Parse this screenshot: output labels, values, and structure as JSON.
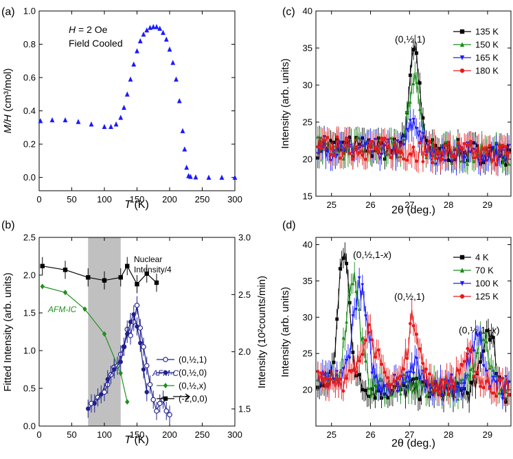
{
  "chart_data": [
    {
      "panel": "(a)",
      "type": "scatter",
      "xlabel_italic": "T",
      "xlabel_unit": " (K)",
      "ylabel_italic": "M/H",
      "ylabel_unit": " (cm³/mol)",
      "annotations": [
        "H = 2 Oe",
        "Field Cooled"
      ],
      "xlim": [
        0,
        300
      ],
      "ylim": [
        -0.08,
        1.0
      ],
      "xticks": [
        0,
        50,
        100,
        150,
        200,
        250,
        300
      ],
      "yticks": [
        0.0,
        0.2,
        0.4,
        0.6,
        0.8,
        1.0
      ],
      "xtick_labels": [
        "0",
        "50",
        "100",
        "150",
        "200",
        "250",
        "300"
      ],
      "ytick_labels": [
        "0.0",
        "0.2",
        "0.4",
        "0.6",
        "0.8",
        "1.0"
      ],
      "series": [
        {
          "color": "#1a1aff",
          "marker": "triangle",
          "x": [
            2,
            20,
            40,
            60,
            80,
            100,
            110,
            118,
            125,
            130,
            135,
            140,
            145,
            150,
            155,
            160,
            165,
            170,
            175,
            180,
            185,
            190,
            195,
            200,
            205,
            210,
            215,
            220,
            223,
            226,
            229,
            232,
            240,
            260,
            280,
            300
          ],
          "y": [
            0.34,
            0.345,
            0.345,
            0.335,
            0.32,
            0.305,
            0.305,
            0.32,
            0.36,
            0.42,
            0.5,
            0.59,
            0.68,
            0.76,
            0.82,
            0.86,
            0.885,
            0.9,
            0.905,
            0.905,
            0.895,
            0.87,
            0.83,
            0.77,
            0.69,
            0.59,
            0.46,
            0.28,
            0.17,
            0.06,
            0.01,
            0.005,
            0.002,
            0.0,
            0.0,
            0.0
          ]
        }
      ]
    },
    {
      "panel": "(b)",
      "type": "line",
      "xlabel_italic": "T",
      "xlabel_unit": " (K)",
      "ylabel": "Fitted Intensity (arb. units)",
      "ylabel_right": "Intensity (10²counts/min)",
      "xlim": [
        0,
        300
      ],
      "ylim": [
        0,
        2.5
      ],
      "ylim_right": [
        1.35,
        3.0
      ],
      "xticks": [
        0,
        50,
        100,
        150,
        200,
        250,
        300
      ],
      "yticks": [
        0.0,
        0.5,
        1.0,
        1.5,
        2.0,
        2.5
      ],
      "yticks_right": [
        1.5,
        2.0,
        2.5,
        3.0
      ],
      "xtick_labels": [
        "0",
        "50",
        "100",
        "150",
        "200",
        "250",
        "300"
      ],
      "ytick_labels": [
        "0.0",
        "0.5",
        "1.0",
        "1.5",
        "2.0",
        "2.5"
      ],
      "ytick_labels_right": [
        "1.5",
        "2.0",
        "2.5",
        "3.0"
      ],
      "shaded_region": [
        75,
        125
      ],
      "annotations": [
        "AFM-IC",
        "AFM-C",
        "Nuclear",
        "Intensity/4"
      ],
      "legend_position": "center-right",
      "series": [
        {
          "name": "(0,½,1)",
          "color": "#1f1f8f",
          "marker": "open-circle",
          "x": [
            80,
            90,
            100,
            105,
            110,
            115,
            120,
            125,
            130,
            135,
            140,
            145,
            150,
            155,
            160,
            165,
            170,
            175,
            180,
            185,
            190,
            195,
            200
          ],
          "y": [
            0.3,
            0.38,
            0.45,
            0.55,
            0.68,
            0.78,
            0.8,
            0.95,
            1.05,
            1.28,
            1.2,
            1.38,
            1.6,
            1.3,
            1.05,
            0.8,
            0.55,
            0.35,
            0.2,
            0.3,
            0.35,
            0.2,
            0.15
          ]
        },
        {
          "name": "(0,½,0)",
          "color": "#1f1f8f",
          "marker": "filled-circle",
          "x": [
            75,
            85,
            95,
            105,
            115,
            125,
            130,
            135,
            140,
            145,
            150,
            155,
            160,
            165
          ],
          "y": [
            0.23,
            0.3,
            0.42,
            0.62,
            0.75,
            0.85,
            1.05,
            1.22,
            1.38,
            1.48,
            1.32,
            1.1,
            0.75,
            0.45
          ]
        },
        {
          "name": "(0,½,x)",
          "color": "#1f8f1f",
          "marker": "diamond",
          "x": [
            5,
            40,
            70,
            100,
            125,
            135
          ],
          "y": [
            1.85,
            1.77,
            1.55,
            1.22,
            0.7,
            0.32
          ]
        },
        {
          "name": "(-2,0,0)",
          "color": "#000000",
          "marker": "square",
          "x": [
            5,
            40,
            75,
            100,
            125,
            135,
            150,
            165,
            180
          ],
          "y": [
            2.12,
            2.07,
            1.97,
            1.93,
            1.97,
            2.12,
            1.88,
            2.02,
            1.9
          ]
        }
      ]
    },
    {
      "panel": "(c)",
      "type": "line",
      "xlabel": "2θ (deg.)",
      "ylabel": "Intensity (arb. units)",
      "annotation": "(0,½,1)",
      "xlim": [
        24.6,
        29.6
      ],
      "ylim": [
        15,
        40
      ],
      "xticks": [
        25,
        26,
        27,
        28,
        29
      ],
      "yticks": [
        15,
        20,
        25,
        30,
        35,
        40
      ],
      "xtick_labels": [
        "25",
        "26",
        "27",
        "28",
        "29"
      ],
      "ytick_labels": [
        "15",
        "20",
        "25",
        "30",
        "35",
        "40"
      ],
      "legend_position": "top-right",
      "series": [
        {
          "name": "135 K",
          "color": "#000000",
          "marker": "square",
          "peaks": [
            {
              "center": 27.12,
              "height": 14.2,
              "width": 0.13
            }
          ],
          "baseline": 21.3
        },
        {
          "name": "150 K",
          "color": "#1a8c1a",
          "marker": "triangle",
          "peaks": [
            {
              "center": 27.12,
              "height": 10.2,
              "width": 0.13
            }
          ],
          "baseline": 21.2
        },
        {
          "name": "165 K",
          "color": "#1a1aff",
          "marker": "triangle-down",
          "peaks": [
            {
              "center": 27.12,
              "height": 3.8,
              "width": 0.15
            }
          ],
          "baseline": 21.0
        },
        {
          "name": "180 K",
          "color": "#e81a1a",
          "marker": "circle",
          "peaks": [],
          "baseline": 21.2
        }
      ]
    },
    {
      "panel": "(d)",
      "type": "line",
      "xlabel": "2θ (deg.)",
      "ylabel": "Intensity (arb. units)",
      "annotations": [
        "(0,½,1-x)",
        "(0,½,1)",
        "(0,½,1+x)"
      ],
      "xlim": [
        24.6,
        29.6
      ],
      "ylim": [
        15,
        41
      ],
      "xticks": [
        25,
        26,
        27,
        28,
        29
      ],
      "yticks": [
        20,
        25,
        30,
        35,
        40
      ],
      "xtick_labels": [
        "25",
        "26",
        "27",
        "28",
        "29"
      ],
      "ytick_labels": [
        "20",
        "25",
        "30",
        "35",
        "40"
      ],
      "legend_position": "top-right",
      "series": [
        {
          "name": "4 K",
          "color": "#000000",
          "marker": "square",
          "peaks": [
            {
              "center": 25.32,
              "height": 18.5,
              "width": 0.15
            },
            {
              "center": 29.02,
              "height": 9.0,
              "width": 0.16
            }
          ],
          "baseline": 20.0
        },
        {
          "name": "70 K",
          "color": "#1a8c1a",
          "marker": "triangle",
          "peaks": [
            {
              "center": 25.55,
              "height": 15.0,
              "width": 0.17
            },
            {
              "center": 28.85,
              "height": 8.0,
              "width": 0.17
            }
          ],
          "baseline": 20.5
        },
        {
          "name": "100 K",
          "color": "#1a1aff",
          "marker": "triangle-down",
          "peaks": [
            {
              "center": 25.72,
              "height": 13.0,
              "width": 0.18
            },
            {
              "center": 28.72,
              "height": 6.5,
              "width": 0.18
            },
            {
              "center": 27.1,
              "height": 2.5,
              "width": 0.2
            }
          ],
          "baseline": 20.8
        },
        {
          "name": "125 K",
          "color": "#e81a1a",
          "marker": "circle",
          "peaks": [
            {
              "center": 25.95,
              "height": 7.5,
              "width": 0.18
            },
            {
              "center": 27.1,
              "height": 8.8,
              "width": 0.15
            },
            {
              "center": 28.5,
              "height": 3.5,
              "width": 0.2
            }
          ],
          "baseline": 21.0
        }
      ]
    }
  ]
}
